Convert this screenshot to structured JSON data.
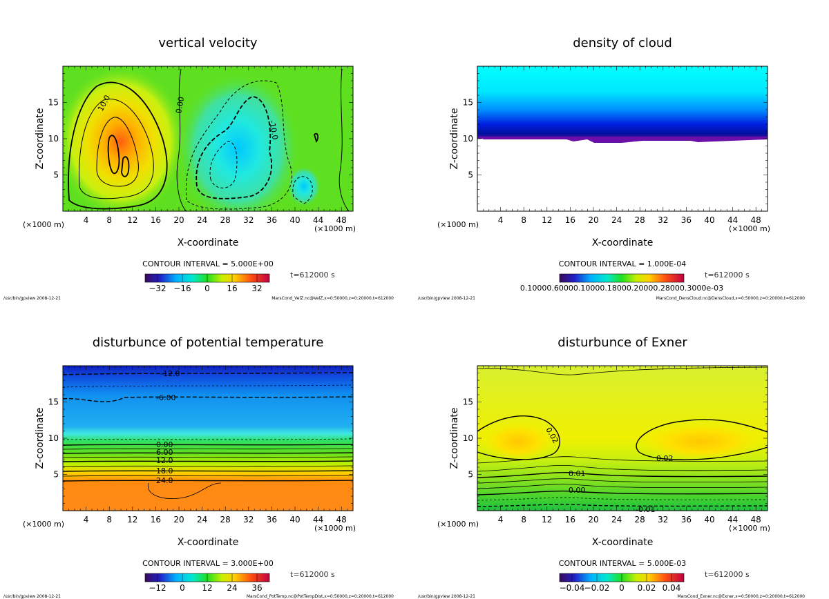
{
  "chart_data": [
    {
      "type": "heatmap",
      "title": "vertical velocity",
      "xlabel": "X-coordinate",
      "ylabel": "Z-coordinate",
      "x_unit": "(×1000 m)",
      "xlim": [
        0,
        50
      ],
      "ylim": [
        0,
        20
      ],
      "x_ticks": [
        "4",
        "8",
        "12",
        "16",
        "20",
        "24",
        "28",
        "32",
        "36",
        "40",
        "44",
        "48"
      ],
      "y_ticks": [
        "5",
        "10",
        "15"
      ],
      "contour_interval": "CONTOUR INTERVAL = 5.000E+00",
      "colorbar_ticks": [
        "−32",
        "−16",
        "0",
        "16",
        "32"
      ],
      "colorbar_range": [
        -40,
        40
      ],
      "time_label": "t=612000 s",
      "footer_left": "/usr/bin/gpview   2008-12-21",
      "footer_right": "MarsCond_VelZ.nc@VelZ,x=0:50000,z=0:20000,t=612000",
      "contour_labels": [
        "10.0",
        "0.00",
        "-10.0"
      ],
      "features": [
        {
          "kind": "updraft",
          "x": 10,
          "z": 8,
          "peak": 35
        },
        {
          "kind": "downdraft",
          "x": 30,
          "z": 8,
          "peak": -18
        }
      ]
    },
    {
      "type": "heatmap",
      "title": "density of cloud",
      "xlabel": "X-coordinate",
      "ylabel": "Z-coordinate",
      "x_unit": "(×1000 m)",
      "xlim": [
        0,
        50
      ],
      "ylim": [
        0,
        20
      ],
      "x_ticks": [
        "4",
        "8",
        "12",
        "16",
        "20",
        "24",
        "28",
        "32",
        "36",
        "40",
        "44",
        "48"
      ],
      "y_ticks": [
        "5",
        "10",
        "15"
      ],
      "contour_interval": "CONTOUR INTERVAL = 1.000E-04",
      "colorbar_ticks_text": "0.10000.60000.10000.18000.20000.28000.3000e-03",
      "time_label": "t=612000 s",
      "footer_left": "/usr/bin/gpview   2008-12-21",
      "footer_right": "MarsCond_DensCloud.nc@DensCloud,x=0:50000,z=0:20000,t=612000",
      "cloud_base_z": 10,
      "cloud_top_z": 20
    },
    {
      "type": "heatmap",
      "title": "disturbunce of potential temperature",
      "xlabel": "X-coordinate",
      "ylabel": "Z-coordinate",
      "x_unit": "(×1000 m)",
      "xlim": [
        0,
        50
      ],
      "ylim": [
        0,
        20
      ],
      "x_ticks": [
        "4",
        "8",
        "12",
        "16",
        "20",
        "24",
        "28",
        "32",
        "36",
        "40",
        "44",
        "48"
      ],
      "y_ticks": [
        "5",
        "10",
        "15"
      ],
      "contour_interval": "CONTOUR INTERVAL = 3.000E+00",
      "colorbar_ticks": [
        "−12",
        "0",
        "12",
        "24",
        "36"
      ],
      "colorbar_range": [
        -18,
        42
      ],
      "time_label": "t=612000 s",
      "footer_left": "/usr/bin/gpview   2008-12-21",
      "footer_right": "MarsCond_PotTemp.nc@PotTempDist,x=0:50000,z=0:20000,t=612000",
      "contour_labels": [
        "-12.0",
        "-6.00",
        "0.00",
        "6.00",
        "12.0",
        "18.0",
        "24.0"
      ]
    },
    {
      "type": "heatmap",
      "title": "disturbunce of Exner",
      "xlabel": "X-coordinate",
      "ylabel": "Z-coordinate",
      "x_unit": "(×1000 m)",
      "xlim": [
        0,
        50
      ],
      "ylim": [
        0,
        20
      ],
      "x_ticks": [
        "4",
        "8",
        "12",
        "16",
        "20",
        "24",
        "28",
        "32",
        "36",
        "40",
        "44",
        "48"
      ],
      "y_ticks": [
        "5",
        "10",
        "15"
      ],
      "contour_interval": "CONTOUR INTERVAL = 5.000E-03",
      "colorbar_ticks": [
        "−0.04",
        "−0.02",
        "0",
        "0.02",
        "0.04"
      ],
      "colorbar_range": [
        -0.05,
        0.05
      ],
      "time_label": "t=612000 s",
      "footer_left": "/usr/bin/gpview   2008-12-21",
      "footer_right": "MarsCond_Exner.nc@Exner,x=0:50000,z=0:20000,t=612000",
      "contour_labels": [
        "0.02",
        "0.02",
        "0.01",
        "0.00",
        "-0.01"
      ]
    }
  ]
}
